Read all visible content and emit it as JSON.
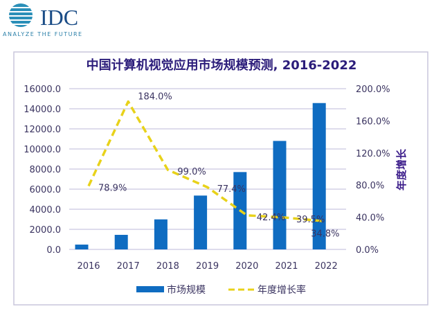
{
  "logo": {
    "text": "IDC",
    "tagline": "ANALYZE THE FUTURE"
  },
  "chart_data": {
    "type": "bar+line",
    "title": "中国计算机视觉应用市场规模预测, 2016-2022",
    "categories": [
      "2016",
      "2017",
      "2018",
      "2019",
      "2020",
      "2021",
      "2022"
    ],
    "series": [
      {
        "name": "市场规模",
        "type": "bar",
        "axis": "left",
        "color": "#0f6cc1",
        "values": [
          480,
          1450,
          2990,
          5360,
          7700,
          10800,
          14570
        ]
      },
      {
        "name": "年度增长率",
        "type": "line",
        "axis": "right",
        "color": "#e8d21a",
        "style": "dashed",
        "values": [
          78.9,
          184.0,
          99.0,
          77.4,
          42.4,
          39.5,
          34.8
        ],
        "labels": [
          "78.9%",
          "184.0%",
          "99.0%",
          "77.4%",
          "42.4%",
          "39.5%",
          "34.8%"
        ]
      }
    ],
    "y_left": {
      "range": [
        0,
        16000
      ],
      "ticks": [
        "0.0",
        "2000.0",
        "4000.0",
        "6000.0",
        "8000.0",
        "10000.0",
        "12000.0",
        "14000.0",
        "16000.0"
      ]
    },
    "y_right": {
      "label": "年度增长",
      "range": [
        0,
        200
      ],
      "ticks": [
        "0.0%",
        "40.0%",
        "80.0%",
        "120.0%",
        "160.0%",
        "200.0%"
      ]
    },
    "grid": true,
    "legend": "bottom"
  }
}
